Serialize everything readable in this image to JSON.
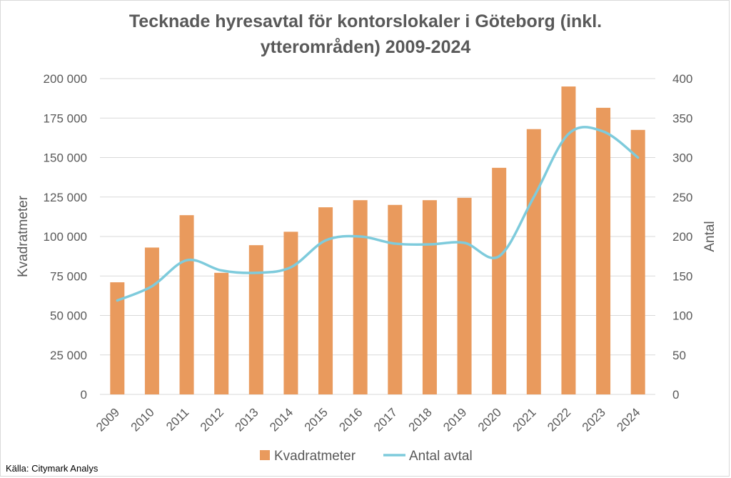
{
  "chart_data": {
    "type": "bar",
    "title_line1": "Tecknade hyresavtal för kontorslokaler i Göteborg (inkl.",
    "title_line2": "ytterområden) 2009-2024",
    "categories": [
      "2009",
      "2010",
      "2011",
      "2012",
      "2013",
      "2014",
      "2015",
      "2016",
      "2017",
      "2018",
      "2019",
      "2020",
      "2021",
      "2022",
      "2023",
      "2024"
    ],
    "series": [
      {
        "name": "Kvadratmeter",
        "type": "bar",
        "axis": "left",
        "color": "#e99a5d",
        "values": [
          71000,
          93000,
          113500,
          77000,
          94500,
          103000,
          118500,
          123000,
          120000,
          123000,
          124500,
          143500,
          168000,
          195000,
          181500,
          167500
        ]
      },
      {
        "name": "Antal avtal",
        "type": "line",
        "axis": "right",
        "color": "#7ecbdc",
        "values": [
          119,
          137,
          170,
          157,
          154,
          161,
          195,
          200,
          191,
          190,
          192,
          175,
          250,
          330,
          333,
          300
        ]
      }
    ],
    "ylabel_left": "Kvadratmeter",
    "ylabel_right": "Antal",
    "ylim_left": [
      0,
      200000
    ],
    "ylim_right": [
      0,
      400
    ],
    "yticks_left": [
      "0",
      "25 000",
      "50 000",
      "75 000",
      "100 000",
      "125 000",
      "150 000",
      "175 000",
      "200 000"
    ],
    "yticks_right": [
      "0",
      "50",
      "100",
      "150",
      "200",
      "250",
      "300",
      "350",
      "400"
    ],
    "grid": true,
    "legend_position": "bottom"
  },
  "source": "Källa: Citymark Analys"
}
